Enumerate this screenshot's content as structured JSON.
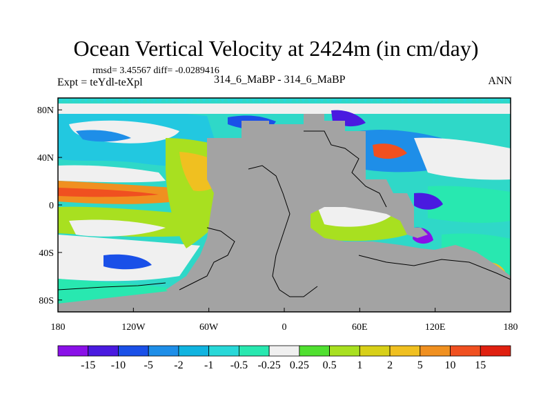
{
  "chart_data": {
    "type": "heatmap",
    "title": "Ocean Vertical Velocity at 2424m (in cm/day)",
    "stats_text": "rmsd= 3.45567 diff= -0.0289416",
    "left_label": "Expt = teYdl-teXpl",
    "center_label": "314_6_MaBP - 314_6_MaBP",
    "right_label": "ANN",
    "x_ticks": [
      "180",
      "120W",
      "60W",
      "0",
      "60E",
      "120E",
      "180"
    ],
    "y_ticks": [
      "80N",
      "40N",
      "0",
      "40S",
      "80S"
    ],
    "x_range": [
      -180,
      180
    ],
    "y_range": [
      -90,
      90
    ],
    "colorbar": {
      "labels": [
        "-15",
        "-10",
        "-5",
        "-2",
        "-1",
        "-0.5",
        "-0.25",
        "0.25",
        "0.5",
        "1",
        "2",
        "5",
        "10",
        "15"
      ],
      "colors": [
        "#8a10e8",
        "#4a1ae0",
        "#1a50e8",
        "#1e8ee8",
        "#10b4e0",
        "#28d8d8",
        "#28e8b0",
        "#f0f0f0",
        "#50e030",
        "#a8e020",
        "#d8d018",
        "#f0c020",
        "#f09020",
        "#f05020",
        "#e02010"
      ]
    },
    "land_color": "#a3a3a3"
  }
}
